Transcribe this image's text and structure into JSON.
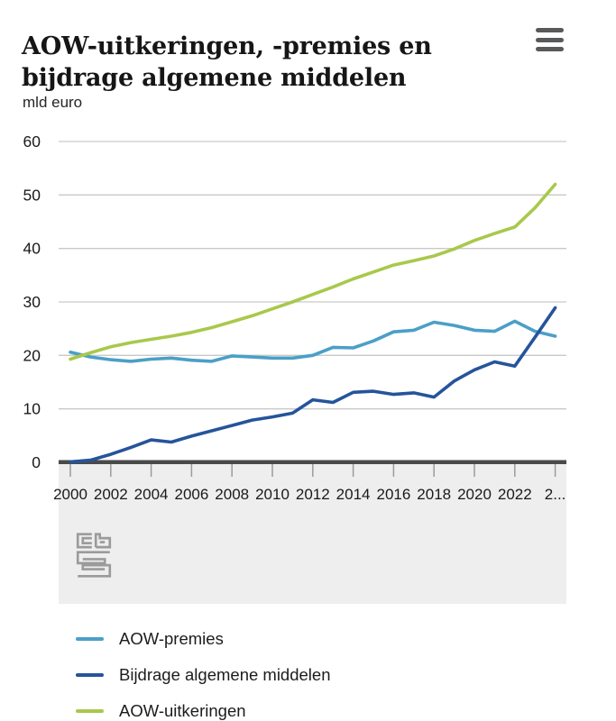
{
  "header": {
    "title_line1": "AOW-uitkeringen, -premies en",
    "title_line2": "bijdrage algemene middelen",
    "menu_icon": "hamburger-icon"
  },
  "chart_data": {
    "type": "line",
    "title": "AOW-uitkeringen, -premies en bijdrage algemene middelen",
    "ylabel": "mld euro",
    "xlabel": "",
    "grid": "horizontal",
    "legend_position": "bottom",
    "ylim": [
      0,
      60
    ],
    "yticks": [
      0,
      10,
      20,
      30,
      40,
      50,
      60
    ],
    "x": [
      2000,
      2001,
      2002,
      2003,
      2004,
      2005,
      2006,
      2007,
      2008,
      2009,
      2010,
      2011,
      2012,
      2013,
      2014,
      2015,
      2016,
      2017,
      2018,
      2019,
      2020,
      2021,
      2022,
      2023,
      2024
    ],
    "x_tick_labels": [
      "2000",
      "2002",
      "2004",
      "2006",
      "2008",
      "2010",
      "2012",
      "2014",
      "2016",
      "2018",
      "2020",
      "2022",
      "2..."
    ],
    "series": [
      {
        "name": "AOW-premies",
        "color": "#4B9FC7",
        "values": [
          20.6,
          19.7,
          19.2,
          18.9,
          19.3,
          19.5,
          19.1,
          18.9,
          19.9,
          19.7,
          19.5,
          19.5,
          20.0,
          21.5,
          21.4,
          22.7,
          24.4,
          24.7,
          26.2,
          25.6,
          24.7,
          24.5,
          26.4,
          24.5,
          23.6
        ]
      },
      {
        "name": "Bijdrage algemene middelen",
        "color": "#25549B",
        "values": [
          0.1,
          0.4,
          1.5,
          2.8,
          4.2,
          3.8,
          4.9,
          5.9,
          6.9,
          7.9,
          8.5,
          9.2,
          11.7,
          11.2,
          13.1,
          13.3,
          12.7,
          13.0,
          12.2,
          15.2,
          17.3,
          18.8,
          18.0,
          23.4,
          28.9
        ]
      },
      {
        "name": "AOW-uitkeringen",
        "color": "#A9C84C",
        "values": [
          19.3,
          20.5,
          21.6,
          22.4,
          23.0,
          23.6,
          24.3,
          25.2,
          26.3,
          27.4,
          28.7,
          30.0,
          31.4,
          32.8,
          34.3,
          35.6,
          36.9,
          37.7,
          38.6,
          39.9,
          41.5,
          42.8,
          44.0,
          47.6,
          52.0
        ]
      }
    ],
    "colors": {
      "gridline": "#c9c9c9",
      "axis": "#4a4a4a",
      "axis_band": "#eeeeee",
      "tick": "#9b9b9b",
      "label": "#1a1a1a"
    }
  },
  "footer": {
    "logo": "cbs-logo"
  }
}
